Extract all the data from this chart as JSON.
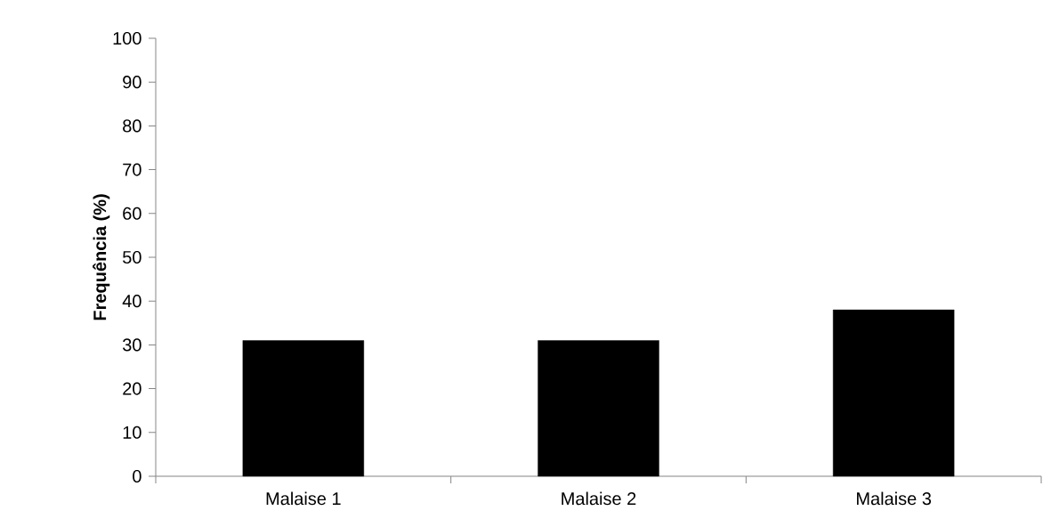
{
  "chart_data": {
    "type": "bar",
    "ylabel": "Frequência (%)",
    "categories": [
      "Malaise 1",
      "Malaise 2",
      "Malaise 3"
    ],
    "values": [
      31,
      31,
      38
    ],
    "color": "#000000",
    "ylim": [
      0,
      100
    ],
    "yticks": [
      0,
      10,
      20,
      30,
      40,
      50,
      60,
      70,
      80,
      90,
      100
    ],
    "grid": false
  }
}
